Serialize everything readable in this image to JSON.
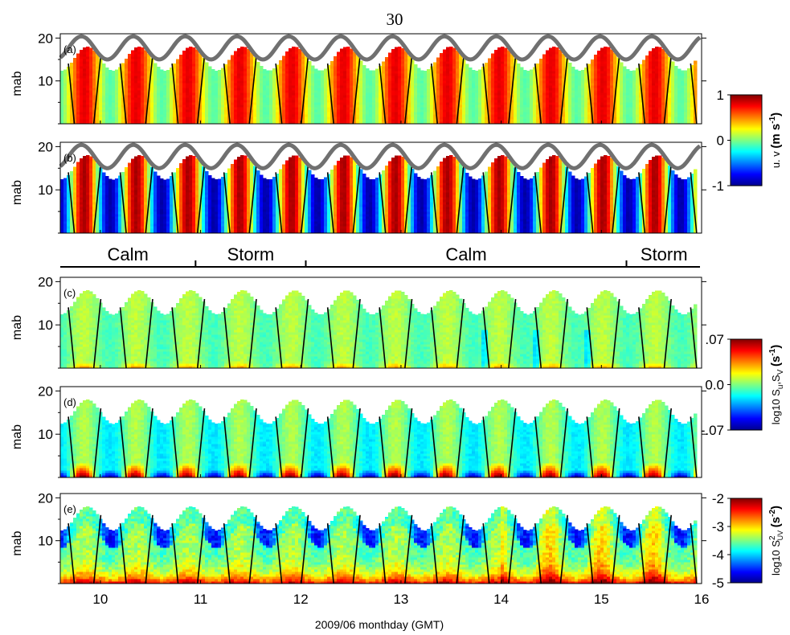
{
  "page_number": "30",
  "chart_data": {
    "type": "heatmap",
    "xlabel": "2009/06 monthday (GMT)",
    "xlim": [
      9.6,
      16.0
    ],
    "x_ticks": [
      10,
      11,
      12,
      13,
      14,
      15,
      16
    ],
    "x_tick_labels": [
      "10",
      "11",
      "12",
      "13",
      "14",
      "15",
      "16"
    ],
    "tidal_period_days": 0.5175,
    "first_flood_peak_day": 9.84,
    "surface_height_mab": {
      "mean": 17.7,
      "amplitude": 2.7
    },
    "data_top_mab": {
      "mean": 15.2,
      "amplitude": 2.8
    },
    "periods": [
      {
        "label": "Calm",
        "start": 9.6,
        "end": 10.95
      },
      {
        "label": "Storm",
        "start": 10.95,
        "end": 12.05
      },
      {
        "label": "Calm",
        "start": 12.05,
        "end": 15.25
      },
      {
        "label": "Storm",
        "start": 15.25,
        "end": 16.0
      }
    ],
    "panels": [
      {
        "id": "a",
        "label": "(a)",
        "ylabel": "mab",
        "ylim": [
          0,
          21
        ],
        "y_ticks": [
          10,
          20
        ],
        "variable": "u",
        "colorbar": "velocity",
        "surface_line": true
      },
      {
        "id": "b",
        "label": "(b)",
        "ylabel": "mab",
        "ylim": [
          0,
          21
        ],
        "y_ticks": [
          10,
          20
        ],
        "variable": "v",
        "colorbar": "velocity",
        "surface_line": true
      },
      {
        "id": "c",
        "label": "(c)",
        "ylabel": "mab",
        "ylim": [
          0,
          21
        ],
        "y_ticks": [
          10,
          20
        ],
        "variable": "Su",
        "colorbar": "shear",
        "surface_line": false
      },
      {
        "id": "d",
        "label": "(d)",
        "ylabel": "mab",
        "ylim": [
          0,
          21
        ],
        "y_ticks": [
          10,
          20
        ],
        "variable": "Sv",
        "colorbar": "shear",
        "surface_line": false
      },
      {
        "id": "e",
        "label": "(e)",
        "ylabel": "mab",
        "ylim": [
          0,
          21
        ],
        "y_ticks": [
          10,
          20
        ],
        "variable": "S2",
        "colorbar": "shear_squared",
        "surface_line": false
      }
    ],
    "colorbars": [
      {
        "id": "velocity",
        "panels": [
          "a",
          "b"
        ],
        "range": [
          -1,
          1
        ],
        "ticks": [
          1,
          0,
          -1
        ],
        "tick_labels": [
          "1",
          "0",
          "-1"
        ],
        "label_main": "u. v",
        "label_unit": "(m s",
        "label_unit_exp": "-1",
        "label_close": ")"
      },
      {
        "id": "shear",
        "panels": [
          "c",
          "d"
        ],
        "range": [
          -0.07,
          0.07
        ],
        "ticks": [
          0.07,
          0.0,
          -0.07
        ],
        "tick_labels": [
          ".07",
          "0.0",
          "-.07"
        ],
        "label_main": "log10 S",
        "label_sub1": "u",
        "label_sep": ",S",
        "label_sub2": "V",
        "label_unit": "(s",
        "label_unit_exp": "-1",
        "label_close": ")"
      },
      {
        "id": "shear_squared",
        "panels": [
          "e"
        ],
        "range": [
          -5,
          -2
        ],
        "ticks": [
          -2,
          -3,
          -4,
          -5
        ],
        "tick_labels": [
          "-2",
          "-3",
          "-4",
          "-5"
        ],
        "label_main": "log10 S",
        "label_exp1": "2",
        "label_sub1": "UV",
        "label_unit": "(s",
        "label_unit_exp": "-2",
        "label_close": ")"
      }
    ],
    "colormap": "jet",
    "grid": false,
    "legend": "none"
  }
}
